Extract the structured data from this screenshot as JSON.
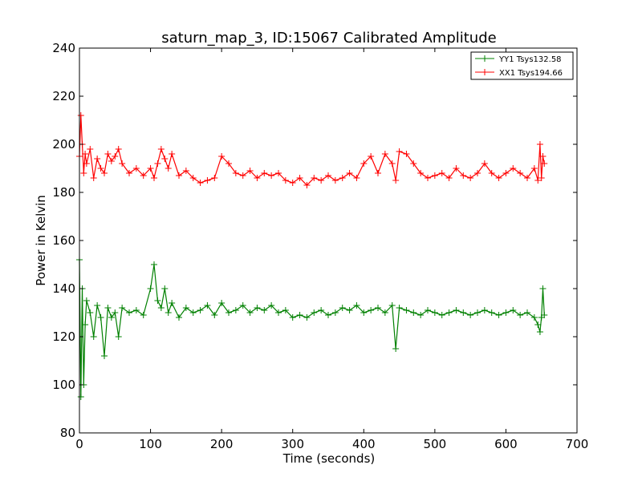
{
  "chart_data": {
    "type": "line",
    "title": "saturn_map_3, ID:15067 Calibrated Amplitude",
    "xlabel": "Time (seconds)",
    "ylabel": "Power in Kelvin",
    "xlim": [
      0,
      700
    ],
    "ylim": [
      80,
      240
    ],
    "xticks": [
      0,
      100,
      200,
      300,
      400,
      500,
      600,
      700
    ],
    "yticks": [
      80,
      100,
      120,
      140,
      160,
      180,
      200,
      220,
      240
    ],
    "grid": false,
    "legend_position": "top-right",
    "markers": "+",
    "series": [
      {
        "name": "YY1 Tsys132.58",
        "color": "#008000",
        "x": [
          0,
          2,
          4,
          6,
          8,
          10,
          15,
          20,
          25,
          30,
          35,
          40,
          45,
          50,
          55,
          60,
          70,
          80,
          90,
          100,
          105,
          110,
          115,
          120,
          125,
          130,
          140,
          150,
          160,
          170,
          180,
          190,
          200,
          210,
          220,
          230,
          240,
          250,
          260,
          270,
          280,
          290,
          300,
          310,
          320,
          330,
          340,
          350,
          360,
          370,
          380,
          390,
          400,
          410,
          420,
          430,
          440,
          445,
          450,
          460,
          470,
          480,
          490,
          500,
          510,
          520,
          530,
          540,
          550,
          560,
          570,
          580,
          590,
          600,
          610,
          620,
          630,
          640,
          645,
          648,
          650,
          652,
          654
        ],
        "y": [
          152,
          95,
          140,
          100,
          125,
          135,
          130,
          120,
          133,
          128,
          112,
          132,
          128,
          130,
          120,
          132,
          130,
          131,
          129,
          140,
          150,
          135,
          132,
          140,
          130,
          134,
          128,
          132,
          130,
          131,
          133,
          129,
          134,
          130,
          131,
          133,
          130,
          132,
          131,
          133,
          130,
          131,
          128,
          129,
          128,
          130,
          131,
          129,
          130,
          132,
          131,
          133,
          130,
          131,
          132,
          130,
          133,
          115,
          132,
          131,
          130,
          129,
          131,
          130,
          129,
          130,
          131,
          130,
          129,
          130,
          131,
          130,
          129,
          130,
          131,
          129,
          130,
          128,
          125,
          122,
          128,
          140,
          129
        ]
      },
      {
        "name": "XX1 Tsys194.66",
        "color": "#ff0000",
        "x": [
          0,
          2,
          4,
          6,
          8,
          10,
          15,
          20,
          25,
          30,
          35,
          40,
          45,
          50,
          55,
          60,
          70,
          80,
          90,
          100,
          105,
          110,
          115,
          120,
          125,
          130,
          140,
          150,
          160,
          170,
          180,
          190,
          200,
          210,
          220,
          230,
          240,
          250,
          260,
          270,
          280,
          290,
          300,
          310,
          320,
          330,
          340,
          350,
          360,
          370,
          380,
          390,
          400,
          410,
          420,
          430,
          440,
          445,
          450,
          460,
          470,
          480,
          490,
          500,
          510,
          520,
          530,
          540,
          550,
          560,
          570,
          580,
          590,
          600,
          610,
          620,
          630,
          640,
          645,
          648,
          650,
          652,
          654
        ],
        "y": [
          195,
          212,
          200,
          188,
          196,
          192,
          198,
          186,
          194,
          190,
          188,
          196,
          193,
          195,
          198,
          192,
          188,
          190,
          187,
          190,
          186,
          192,
          198,
          194,
          190,
          196,
          187,
          189,
          186,
          184,
          185,
          186,
          195,
          192,
          188,
          187,
          189,
          186,
          188,
          187,
          188,
          185,
          184,
          186,
          183,
          186,
          185,
          187,
          185,
          186,
          188,
          186,
          192,
          195,
          188,
          196,
          192,
          185,
          197,
          196,
          192,
          188,
          186,
          187,
          188,
          186,
          190,
          187,
          186,
          188,
          192,
          188,
          186,
          188,
          190,
          188,
          186,
          190,
          185,
          200,
          186,
          195,
          192
        ]
      }
    ]
  }
}
